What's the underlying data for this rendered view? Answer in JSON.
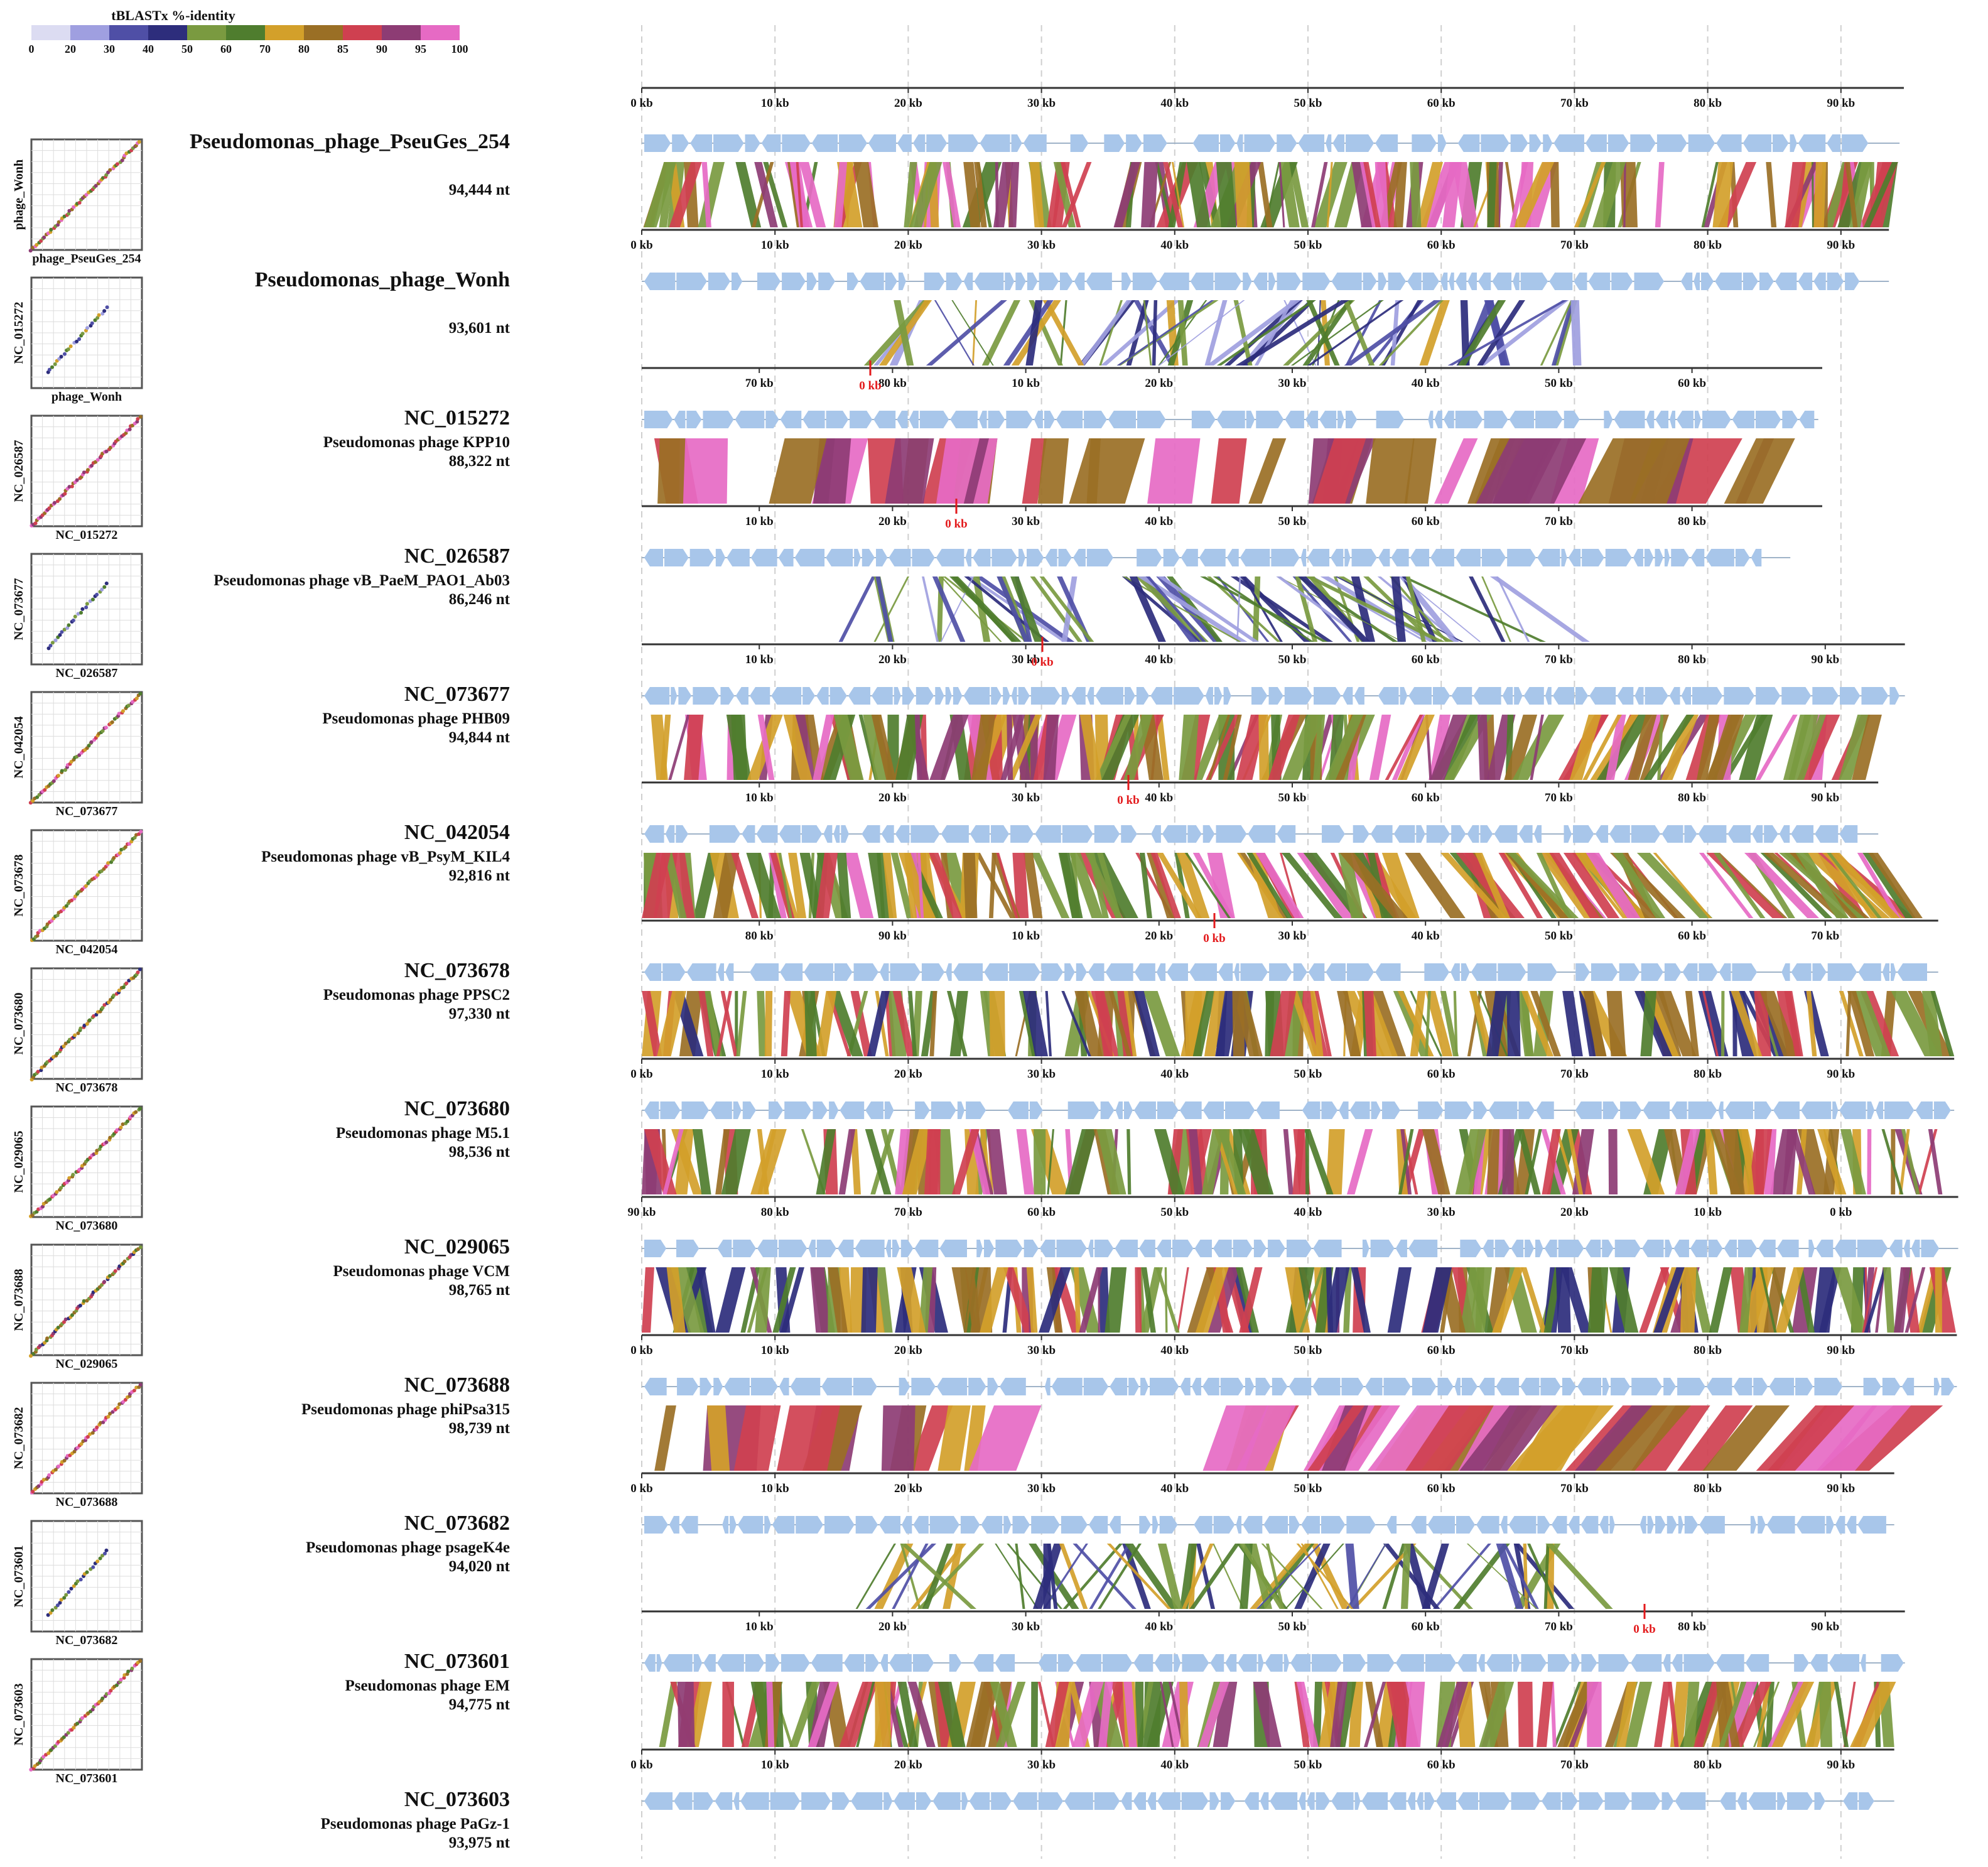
{
  "legend": {
    "title": "tBLASTx %-identity",
    "ticks": [
      "0",
      "20",
      "30",
      "40",
      "50",
      "60",
      "70",
      "80",
      "85",
      "90",
      "95",
      "100"
    ],
    "colors": [
      "#dcdcf2",
      "#9f9fe0",
      "#4f4fa6",
      "#2d2d7c",
      "#7a9a40",
      "#4f7d2e",
      "#d3a02a",
      "#9a6f25",
      "#cf4050",
      "#8d3c74",
      "#e66ac4"
    ]
  },
  "colors": {
    "gene": "#a8c6ea",
    "axis": "#333333",
    "zero": "#e31a1c",
    "grid": "#cfcfcf"
  },
  "genomes": [
    {
      "id": "Pseudomonas_phage_PseuGes_254",
      "desc": "",
      "length": "94,444 nt",
      "kb": 94.4
    },
    {
      "id": "Pseudomonas_phage_Wonh",
      "desc": "",
      "length": "93,601 nt",
      "kb": 93.6
    },
    {
      "id": "NC_015272",
      "desc": "Pseudomonas phage KPP10",
      "length": "88,322 nt",
      "kb": 88.3
    },
    {
      "id": "NC_026587",
      "desc": "Pseudomonas phage vB_PaeM_PAO1_Ab03",
      "length": "86,246 nt",
      "kb": 86.2
    },
    {
      "id": "NC_073677",
      "desc": "Pseudomonas phage PHB09",
      "length": "94,844 nt",
      "kb": 94.8
    },
    {
      "id": "NC_042054",
      "desc": "Pseudomonas phage vB_PsyM_KIL4",
      "length": "92,816 nt",
      "kb": 92.8
    },
    {
      "id": "NC_073678",
      "desc": "Pseudomonas phage PPSC2",
      "length": "97,330 nt",
      "kb": 97.3
    },
    {
      "id": "NC_073680",
      "desc": "Pseudomonas phage M5.1",
      "length": "98,536 nt",
      "kb": 98.5
    },
    {
      "id": "NC_029065",
      "desc": "Pseudomonas phage VCM",
      "length": "98,765 nt",
      "kb": 98.8
    },
    {
      "id": "NC_073688",
      "desc": "Pseudomonas phage phiPsa315",
      "length": "98,739 nt",
      "kb": 98.7
    },
    {
      "id": "NC_073682",
      "desc": "Pseudomonas phage psageK4e",
      "length": "94,020 nt",
      "kb": 94.0
    },
    {
      "id": "NC_073601",
      "desc": "Pseudomonas phage EM",
      "length": "94,775 nt",
      "kb": 94.8
    },
    {
      "id": "NC_073603",
      "desc": "Pseudomonas phage PaGz-1",
      "length": "93,975 nt",
      "kb": 94.0
    }
  ],
  "scales": [
    {
      "labels": [
        "0 kb",
        "10 kb",
        "20 kb",
        "30 kb",
        "40 kb",
        "50 kb",
        "60 kb",
        "70 kb",
        "80 kb",
        "90 kb"
      ],
      "zero_marker": ""
    },
    {
      "labels": [
        "0 kb",
        "10 kb",
        "20 kb",
        "30 kb",
        "40 kb",
        "50 kb",
        "60 kb",
        "70 kb",
        "80 kb",
        "90 kb"
      ],
      "zero_marker": ""
    },
    {
      "labels": [
        "70 kb",
        "80 kb",
        "10 kb",
        "20 kb",
        "30 kb",
        "40 kb",
        "50 kb",
        "60 kb"
      ],
      "zero_marker": "0 kb"
    },
    {
      "labels": [
        "10 kb",
        "20 kb",
        "30 kb",
        "40 kb",
        "50 kb",
        "60 kb",
        "70 kb",
        "80 kb"
      ],
      "zero_marker": "0 kb"
    },
    {
      "labels": [
        "10 kb",
        "20 kb",
        "30 kb",
        "40 kb",
        "50 kb",
        "60 kb",
        "70 kb",
        "80 kb",
        "90 kb"
      ],
      "zero_marker": "0 kb"
    },
    {
      "labels": [
        "10 kb",
        "20 kb",
        "30 kb",
        "40 kb",
        "50 kb",
        "60 kb",
        "70 kb",
        "80 kb",
        "90 kb"
      ],
      "zero_marker": "0 kb"
    },
    {
      "labels": [
        "80 kb",
        "90 kb",
        "10 kb",
        "20 kb",
        "30 kb",
        "40 kb",
        "50 kb",
        "60 kb",
        "70 kb"
      ],
      "zero_marker": "0 kb"
    },
    {
      "labels": [
        "0 kb",
        "10 kb",
        "20 kb",
        "30 kb",
        "40 kb",
        "50 kb",
        "60 kb",
        "70 kb",
        "80 kb",
        "90 kb"
      ],
      "zero_marker": ""
    },
    {
      "labels": [
        "90 kb",
        "80 kb",
        "70 kb",
        "60 kb",
        "50 kb",
        "40 kb",
        "30 kb",
        "20 kb",
        "10 kb",
        "0 kb"
      ],
      "zero_marker": ""
    },
    {
      "labels": [
        "0 kb",
        "10 kb",
        "20 kb",
        "30 kb",
        "40 kb",
        "50 kb",
        "60 kb",
        "70 kb",
        "80 kb",
        "90 kb"
      ],
      "zero_marker": ""
    },
    {
      "labels": [
        "0 kb",
        "10 kb",
        "20 kb",
        "30 kb",
        "40 kb",
        "50 kb",
        "60 kb",
        "70 kb",
        "80 kb",
        "90 kb"
      ],
      "zero_marker": ""
    },
    {
      "labels": [
        "10 kb",
        "20 kb",
        "30 kb",
        "40 kb",
        "50 kb",
        "60 kb",
        "70 kb",
        "80 kb",
        "90 kb"
      ],
      "zero_marker": "0 kb"
    },
    {
      "labels": [
        "0 kb",
        "10 kb",
        "20 kb",
        "30 kb",
        "40 kb",
        "50 kb",
        "60 kb",
        "70 kb",
        "80 kb",
        "90 kb"
      ],
      "zero_marker": ""
    }
  ],
  "comparisons": [
    {
      "pair": "PseuGes_254 vs Wonh",
      "style": "dense",
      "palette": [
        9,
        7,
        10,
        6,
        5,
        8,
        4
      ]
    },
    {
      "pair": "Wonh vs NC_015272",
      "style": "sparse",
      "palette": [
        3,
        2,
        5,
        4,
        6,
        1
      ]
    },
    {
      "pair": "NC_015272 vs NC_026587",
      "style": "blocks",
      "palette": [
        10,
        9,
        8,
        7
      ]
    },
    {
      "pair": "NC_026587 vs NC_073677",
      "style": "sparse",
      "palette": [
        3,
        2,
        4,
        1,
        5
      ]
    },
    {
      "pair": "NC_073677 vs NC_042054",
      "style": "dense",
      "palette": [
        8,
        6,
        7,
        5,
        4,
        9,
        10
      ]
    },
    {
      "pair": "NC_042054 vs NC_073678",
      "style": "dense",
      "palette": [
        6,
        5,
        4,
        7,
        8,
        10
      ]
    },
    {
      "pair": "NC_073678 vs NC_073680",
      "style": "dense",
      "palette": [
        6,
        7,
        5,
        4,
        8,
        3
      ]
    },
    {
      "pair": "NC_073680 vs NC_029065",
      "style": "dense",
      "palette": [
        6,
        7,
        4,
        5,
        8,
        10,
        9
      ]
    },
    {
      "pair": "NC_029065 vs NC_073688",
      "style": "dense",
      "palette": [
        6,
        5,
        7,
        4,
        8,
        9,
        3
      ]
    },
    {
      "pair": "NC_073688 vs NC_073682",
      "style": "blocks",
      "palette": [
        10,
        8,
        6,
        7,
        9
      ]
    },
    {
      "pair": "NC_073682 vs NC_073601",
      "style": "sparse",
      "palette": [
        3,
        6,
        5,
        4,
        2
      ]
    },
    {
      "pair": "NC_073601 vs NC_073603",
      "style": "dense",
      "palette": [
        10,
        8,
        6,
        7,
        5,
        9,
        4
      ]
    }
  ],
  "dotplots": [
    {
      "ylabel": "phage_Wonh",
      "xlabel": "phage_PseuGes_254",
      "kind": "full"
    },
    {
      "ylabel": "NC_015272",
      "xlabel": "phage_Wonh",
      "kind": "partial"
    },
    {
      "ylabel": "NC_026587",
      "xlabel": "NC_015272",
      "kind": "full"
    },
    {
      "ylabel": "NC_073677",
      "xlabel": "NC_026587",
      "kind": "partial"
    },
    {
      "ylabel": "NC_042054",
      "xlabel": "NC_073677",
      "kind": "full"
    },
    {
      "ylabel": "NC_073678",
      "xlabel": "NC_042054",
      "kind": "full"
    },
    {
      "ylabel": "NC_073680",
      "xlabel": "NC_073678",
      "kind": "full"
    },
    {
      "ylabel": "NC_029065",
      "xlabel": "NC_073680",
      "kind": "full"
    },
    {
      "ylabel": "NC_073688",
      "xlabel": "NC_029065",
      "kind": "full"
    },
    {
      "ylabel": "NC_073682",
      "xlabel": "NC_073688",
      "kind": "full"
    },
    {
      "ylabel": "NC_073601",
      "xlabel": "NC_073682",
      "kind": "partial"
    },
    {
      "ylabel": "NC_073603",
      "xlabel": "NC_073601",
      "kind": "full"
    }
  ]
}
